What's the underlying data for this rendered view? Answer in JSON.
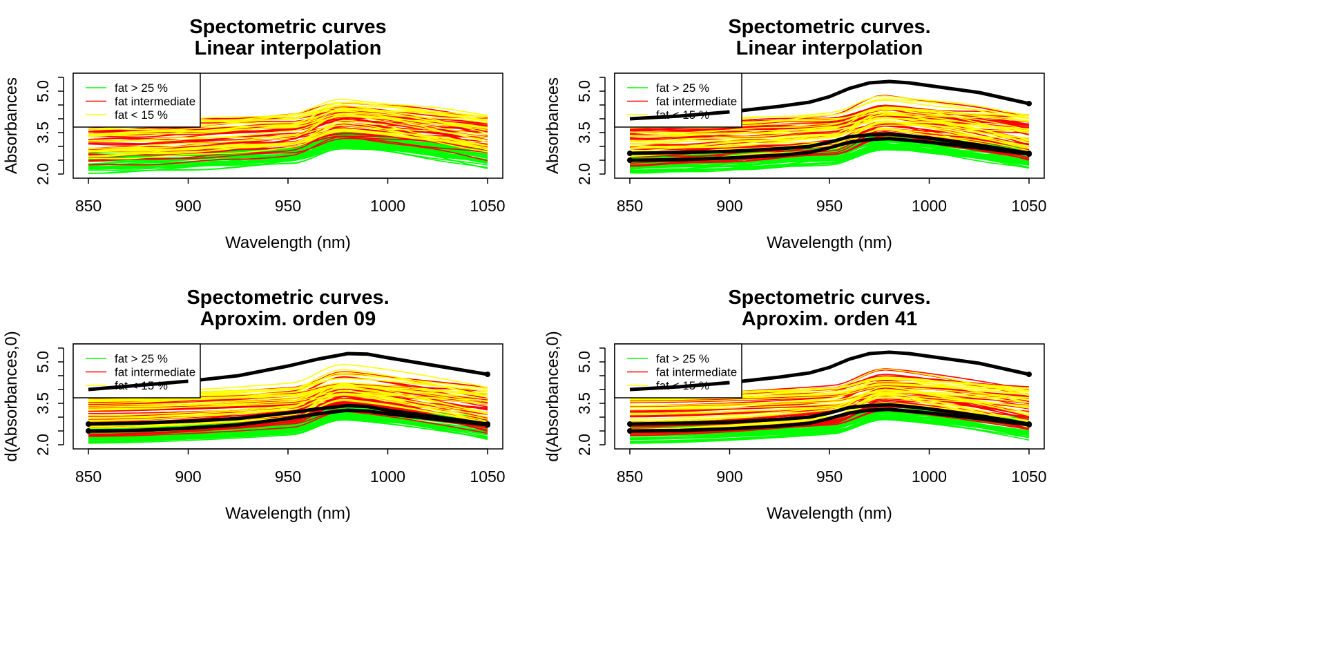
{
  "colors": {
    "high_fat": "#00ff00",
    "intermediate_fat": "#ff0000",
    "low_fat": "#ffff00",
    "mean_curves": "#000000",
    "background": "#ffffff"
  },
  "chart_data": [
    {
      "type": "line",
      "title": [
        "Spectometric curves",
        "Linear interpolation"
      ],
      "xlabel": "Wavelength (nm)",
      "ylabel": "Absorbances",
      "xlim": [
        850,
        1050
      ],
      "ylim": [
        2.0,
        5.5
      ],
      "xticks": [
        "850",
        "900",
        "950",
        "1000",
        "1050"
      ],
      "yticks": [
        "2.0",
        "3.5",
        "5.0"
      ],
      "legend": {
        "position": "top-left",
        "entries": [
          "fat > 25 %",
          "fat intermediate",
          "fat < 15 %"
        ],
        "colors": [
          "#00ff00",
          "#ff0000",
          "#ffff00"
        ]
      },
      "curve_families": [
        {
          "name": "fat > 25 %",
          "color": "#00ff00",
          "count": 40,
          "start_range": [
            2.05,
            2.75
          ],
          "peak_range": [
            2.9,
            3.6
          ]
        },
        {
          "name": "fat intermediate",
          "color": "#ff0000",
          "count": 40,
          "start_range": [
            2.3,
            3.9
          ],
          "peak_range": [
            3.2,
            5.0
          ]
        },
        {
          "name": "fat < 15 %",
          "color": "#ffff00",
          "count": 25,
          "start_range": [
            2.5,
            3.9
          ],
          "peak_range": [
            3.5,
            5.0
          ]
        }
      ],
      "highlight_series": [],
      "grid": false
    },
    {
      "type": "line",
      "title": [
        "Spectometric curves.",
        "Linear interpolation"
      ],
      "xlabel": "Wavelength (nm)",
      "ylabel": "Absorbances",
      "xlim": [
        850,
        1050
      ],
      "ylim": [
        2.0,
        5.5
      ],
      "xticks": [
        "850",
        "900",
        "950",
        "1000",
        "1050"
      ],
      "yticks": [
        "2.0",
        "3.5",
        "5.0"
      ],
      "legend": {
        "position": "top-left",
        "entries": [
          "fat > 25 %",
          "fat intermediate",
          "fat < 15 %"
        ],
        "colors": [
          "#00ff00",
          "#ff0000",
          "#ffff00"
        ]
      },
      "curve_families": [
        {
          "name": "fat > 25 %",
          "color": "#00ff00",
          "count": 40,
          "start_range": [
            2.05,
            2.75
          ],
          "peak_range": [
            2.9,
            3.6
          ]
        },
        {
          "name": "fat intermediate",
          "color": "#ff0000",
          "count": 40,
          "start_range": [
            2.3,
            3.9
          ],
          "peak_range": [
            3.2,
            5.0
          ]
        },
        {
          "name": "fat < 15 %",
          "color": "#ffff00",
          "count": 25,
          "start_range": [
            2.5,
            3.9
          ],
          "peak_range": [
            3.5,
            5.0
          ]
        }
      ],
      "highlight_series": [
        {
          "x": [
            850,
            875,
            900,
            925,
            940,
            950,
            960,
            970,
            980,
            990,
            1000,
            1025,
            1050
          ],
          "y": [
            4.0,
            4.1,
            4.25,
            4.45,
            4.6,
            4.8,
            5.1,
            5.3,
            5.35,
            5.3,
            5.2,
            4.95,
            4.55
          ]
        },
        {
          "x": [
            850,
            875,
            900,
            925,
            940,
            950,
            960,
            970,
            980,
            990,
            1000,
            1025,
            1050
          ],
          "y": [
            2.75,
            2.78,
            2.82,
            2.92,
            3.0,
            3.15,
            3.35,
            3.42,
            3.45,
            3.38,
            3.3,
            3.05,
            2.75
          ]
        },
        {
          "x": [
            850,
            875,
            900,
            925,
            940,
            950,
            960,
            970,
            980,
            990,
            1000,
            1025,
            1050
          ],
          "y": [
            2.5,
            2.52,
            2.58,
            2.68,
            2.78,
            2.95,
            3.15,
            3.25,
            3.28,
            3.22,
            3.15,
            2.95,
            2.72
          ]
        }
      ],
      "grid": false
    },
    {
      "type": "line",
      "title": [
        "Spectometric curves.",
        "Aproxim. orden 09"
      ],
      "xlabel": "Wavelength (nm)",
      "ylabel": "d(Absorbances,0)",
      "xlim": [
        850,
        1050
      ],
      "ylim": [
        2.0,
        5.5
      ],
      "xticks": [
        "850",
        "900",
        "950",
        "1000",
        "1050"
      ],
      "yticks": [
        "2.0",
        "3.5",
        "5.0"
      ],
      "legend": {
        "position": "top-left",
        "entries": [
          "fat > 25 %",
          "fat intermediate",
          "fat < 15 %"
        ],
        "colors": [
          "#00ff00",
          "#ff0000",
          "#ffff00"
        ]
      },
      "curve_families": [
        {
          "name": "fat > 25 %",
          "color": "#00ff00",
          "count": 40,
          "start_range": [
            2.05,
            2.75
          ],
          "peak_range": [
            2.9,
            3.6
          ]
        },
        {
          "name": "fat intermediate",
          "color": "#ff0000",
          "count": 40,
          "start_range": [
            2.3,
            3.9
          ],
          "peak_range": [
            3.2,
            5.0
          ]
        },
        {
          "name": "fat < 15 %",
          "color": "#ffff00",
          "count": 25,
          "start_range": [
            2.5,
            3.9
          ],
          "peak_range": [
            3.5,
            5.0
          ]
        }
      ],
      "highlight_series": [
        {
          "x": [
            850,
            875,
            900,
            925,
            950,
            965,
            980,
            990,
            1000,
            1025,
            1050
          ],
          "y": [
            4.0,
            4.15,
            4.3,
            4.5,
            4.85,
            5.1,
            5.3,
            5.28,
            5.15,
            4.85,
            4.55
          ]
        },
        {
          "x": [
            850,
            875,
            900,
            925,
            950,
            965,
            980,
            990,
            1000,
            1025,
            1050
          ],
          "y": [
            2.75,
            2.78,
            2.85,
            2.95,
            3.15,
            3.3,
            3.42,
            3.38,
            3.25,
            3.0,
            2.75
          ]
        },
        {
          "x": [
            850,
            875,
            900,
            925,
            950,
            965,
            980,
            990,
            1000,
            1025,
            1050
          ],
          "y": [
            2.5,
            2.52,
            2.6,
            2.72,
            2.95,
            3.12,
            3.25,
            3.22,
            3.12,
            2.92,
            2.72
          ]
        }
      ],
      "grid": false
    },
    {
      "type": "line",
      "title": [
        "Spectometric curves.",
        "Aproxim. orden 41"
      ],
      "xlabel": "Wavelength (nm)",
      "ylabel": "d(Absorbances,0)",
      "xlim": [
        850,
        1050
      ],
      "ylim": [
        2.0,
        5.5
      ],
      "xticks": [
        "850",
        "900",
        "950",
        "1000",
        "1050"
      ],
      "yticks": [
        "2.0",
        "3.5",
        "5.0"
      ],
      "legend": {
        "position": "top-left",
        "entries": [
          "fat > 25 %",
          "fat intermediate",
          "fat < 15 %"
        ],
        "colors": [
          "#00ff00",
          "#ff0000",
          "#ffff00"
        ]
      },
      "curve_families": [
        {
          "name": "fat > 25 %",
          "color": "#00ff00",
          "count": 40,
          "start_range": [
            2.05,
            2.75
          ],
          "peak_range": [
            2.9,
            3.6
          ]
        },
        {
          "name": "fat intermediate",
          "color": "#ff0000",
          "count": 40,
          "start_range": [
            2.3,
            3.9
          ],
          "peak_range": [
            3.2,
            5.0
          ]
        },
        {
          "name": "fat < 15 %",
          "color": "#ffff00",
          "count": 25,
          "start_range": [
            2.5,
            3.9
          ],
          "peak_range": [
            3.5,
            5.0
          ]
        }
      ],
      "highlight_series": [
        {
          "x": [
            850,
            875,
            900,
            925,
            940,
            950,
            960,
            970,
            980,
            990,
            1000,
            1025,
            1050
          ],
          "y": [
            4.0,
            4.1,
            4.25,
            4.45,
            4.6,
            4.8,
            5.1,
            5.3,
            5.35,
            5.3,
            5.2,
            4.95,
            4.55
          ]
        },
        {
          "x": [
            850,
            875,
            900,
            925,
            940,
            950,
            960,
            970,
            980,
            990,
            1000,
            1025,
            1050
          ],
          "y": [
            2.75,
            2.78,
            2.82,
            2.92,
            3.0,
            3.15,
            3.35,
            3.42,
            3.45,
            3.38,
            3.3,
            3.05,
            2.75
          ]
        },
        {
          "x": [
            850,
            875,
            900,
            925,
            940,
            950,
            960,
            970,
            980,
            990,
            1000,
            1025,
            1050
          ],
          "y": [
            2.5,
            2.52,
            2.58,
            2.68,
            2.78,
            2.95,
            3.15,
            3.25,
            3.28,
            3.22,
            3.15,
            2.95,
            2.72
          ]
        }
      ],
      "grid": false
    }
  ]
}
